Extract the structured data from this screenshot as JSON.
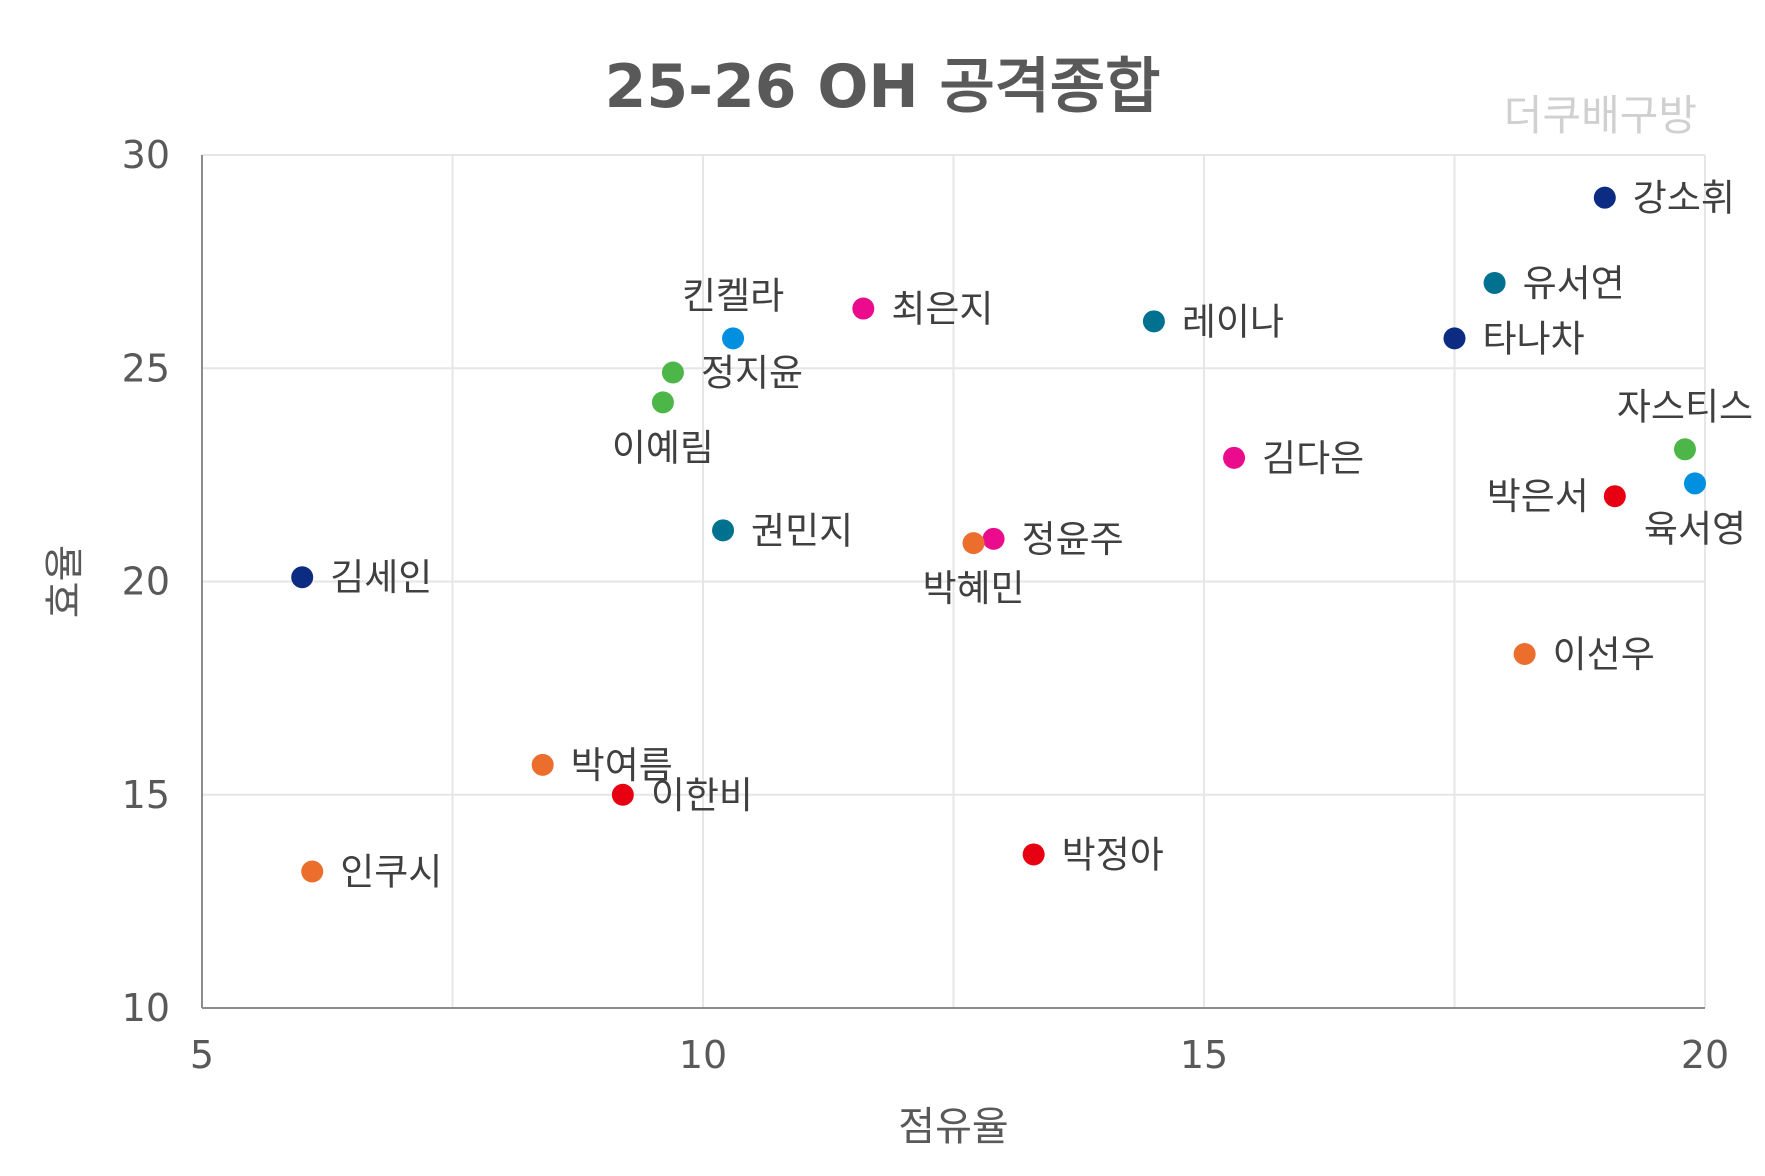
{
  "title": "25-26 OH 공격종합",
  "watermark": "더쿠배구방",
  "chart_data": {
    "type": "scatter",
    "title": "25-26 OH 공격종합",
    "xlabel": "점유율",
    "ylabel": "효율",
    "xlim": [
      5,
      20
    ],
    "ylim": [
      10,
      30
    ],
    "xticks": [
      5,
      10,
      15,
      20
    ],
    "yticks": [
      10,
      15,
      20,
      25,
      30
    ],
    "grid": true,
    "legend": "none",
    "points": [
      {
        "label": "강소휘",
        "x": 19.0,
        "y": 29.0,
        "color": "#0c2c84",
        "label_pos": "right"
      },
      {
        "label": "유서연",
        "x": 17.9,
        "y": 27.0,
        "color": "#00718f",
        "label_pos": "right"
      },
      {
        "label": "타나차",
        "x": 17.5,
        "y": 25.7,
        "color": "#0c2c84",
        "label_pos": "right"
      },
      {
        "label": "자스티스",
        "x": 19.8,
        "y": 23.1,
        "color": "#4cb748",
        "label_pos": "above"
      },
      {
        "label": "육서영",
        "x": 19.9,
        "y": 22.3,
        "color": "#0090df",
        "label_pos": "below"
      },
      {
        "label": "박은서",
        "x": 19.1,
        "y": 22.0,
        "color": "#e60012",
        "label_pos": "left"
      },
      {
        "label": "이선우",
        "x": 18.2,
        "y": 18.3,
        "color": "#ec6e2d",
        "label_pos": "right"
      },
      {
        "label": "레이나",
        "x": 14.5,
        "y": 26.1,
        "color": "#00718f",
        "label_pos": "right"
      },
      {
        "label": "김다은",
        "x": 15.3,
        "y": 22.9,
        "color": "#ea0c8c",
        "label_pos": "right"
      },
      {
        "label": "최은지",
        "x": 11.6,
        "y": 26.4,
        "color": "#ea0c8c",
        "label_pos": "right"
      },
      {
        "label": "킨켈라",
        "x": 10.3,
        "y": 25.7,
        "color": "#0090df",
        "label_pos": "above"
      },
      {
        "label": "정지윤",
        "x": 9.7,
        "y": 24.9,
        "color": "#4cb748",
        "label_pos": "right"
      },
      {
        "label": "이예림",
        "x": 9.6,
        "y": 24.2,
        "color": "#4cb748",
        "label_pos": "below"
      },
      {
        "label": "권민지",
        "x": 10.2,
        "y": 21.2,
        "color": "#00718f",
        "label_pos": "right"
      },
      {
        "label": "정윤주",
        "x": 12.9,
        "y": 21.0,
        "color": "#ea0c8c",
        "label_pos": "right"
      },
      {
        "label": "박혜민",
        "x": 12.7,
        "y": 20.9,
        "color": "#ec6e2d",
        "label_pos": "below"
      },
      {
        "label": "김세인",
        "x": 6.0,
        "y": 20.1,
        "color": "#0c2c84",
        "label_pos": "right"
      },
      {
        "label": "박여름",
        "x": 8.4,
        "y": 15.7,
        "color": "#ec6e2d",
        "label_pos": "right"
      },
      {
        "label": "이한비",
        "x": 9.2,
        "y": 15.0,
        "color": "#e60012",
        "label_pos": "right"
      },
      {
        "label": "박정아",
        "x": 13.3,
        "y": 13.6,
        "color": "#e60012",
        "label_pos": "right"
      },
      {
        "label": "인쿠시",
        "x": 6.1,
        "y": 13.2,
        "color": "#ec6e2d",
        "label_pos": "right"
      }
    ]
  }
}
